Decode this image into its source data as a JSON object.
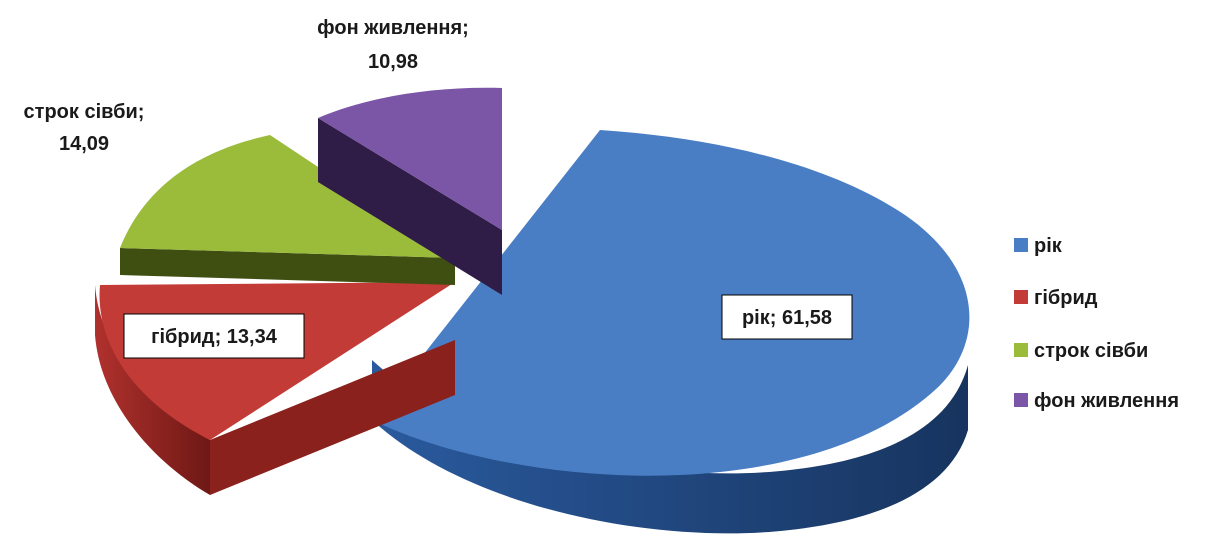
{
  "chart_data": {
    "type": "pie",
    "title": "",
    "slices": [
      {
        "name": "рік",
        "value": 61.58,
        "label": "рік; 61,58",
        "color": "#4a7ec4",
        "side_color": "#1f4f8f"
      },
      {
        "name": "гібрид",
        "value": 13.34,
        "label": "гібрид; 13,34",
        "color": "#c23b36",
        "side_color": "#7a1c17"
      },
      {
        "name": "строк сівби",
        "value": 14.09,
        "label_lines": [
          "строк сівби;",
          "14,09"
        ],
        "color": "#9bbb3b",
        "side_color": "#3f4f12"
      },
      {
        "name": "фон живлення",
        "value": 10.98,
        "label_lines": [
          "фон живлення;",
          "10,98"
        ],
        "color": "#7b56a6",
        "side_color": "#2f1c47"
      }
    ],
    "legend": {
      "position": "right",
      "items": [
        "рік",
        "гібрид",
        "строк сівби",
        "фон живлення"
      ]
    },
    "exploded": true,
    "style": "3d"
  }
}
